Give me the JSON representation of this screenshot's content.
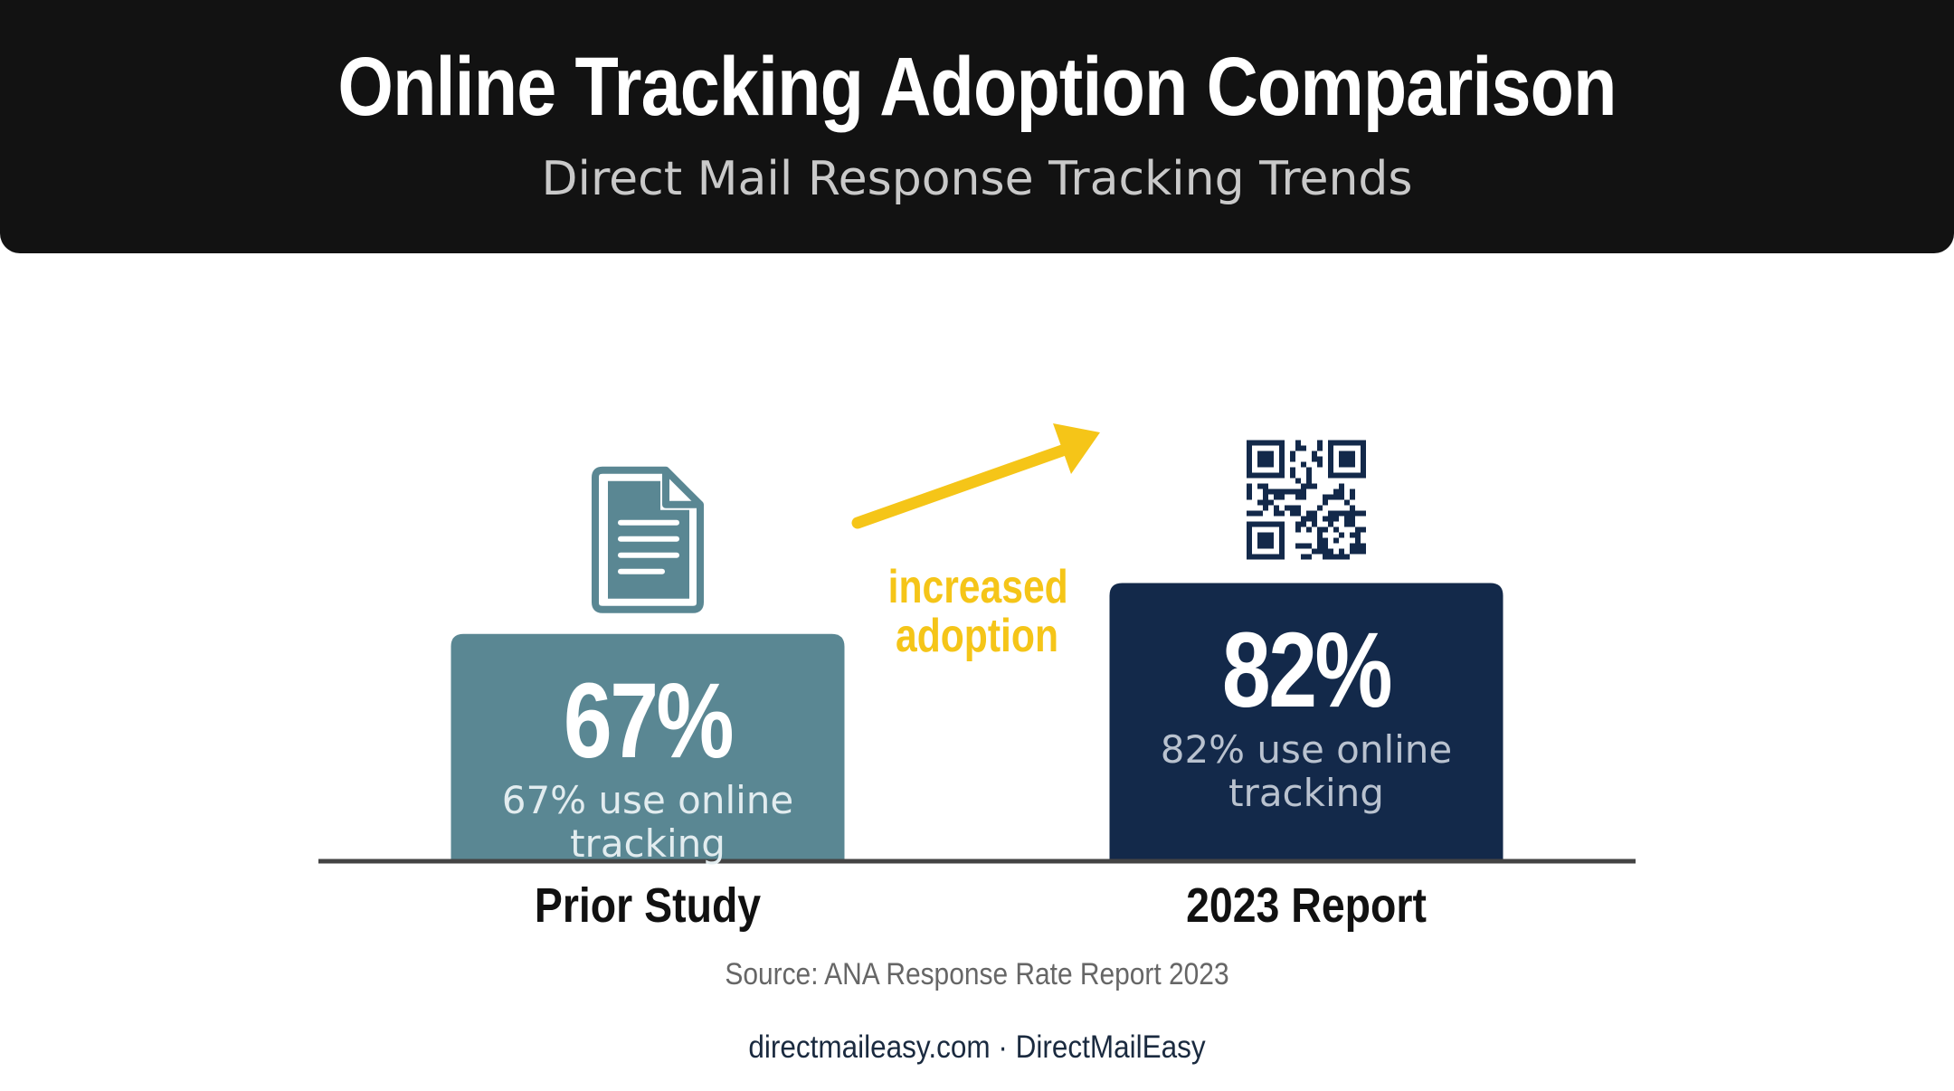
{
  "header": {
    "title": "Online Tracking Adoption Comparison",
    "subtitle": "Direct Mail Response Tracking Trends"
  },
  "chart_data": {
    "type": "bar",
    "title": "Online Tracking Adoption Comparison",
    "subtitle": "Direct Mail Response Tracking Trends",
    "categories": [
      "Prior Study",
      "2023 Report"
    ],
    "values": [
      67,
      82
    ],
    "value_labels": [
      "67%",
      "82%"
    ],
    "descriptions": [
      "67% use online tracking",
      "82% use online tracking"
    ],
    "icons": [
      "document-icon",
      "qr-code-icon"
    ],
    "colors": [
      "#5a8793",
      "#13294a"
    ],
    "annotation": "increased adoption",
    "annotation_color": "#f5c518",
    "xlabel": "",
    "ylabel": "",
    "ylim": [
      0,
      100
    ],
    "grid": false,
    "legend": "none"
  },
  "source": "Source: ANA Response Rate Report 2023",
  "footer": "directmaileasy.com · DirectMailEasy"
}
